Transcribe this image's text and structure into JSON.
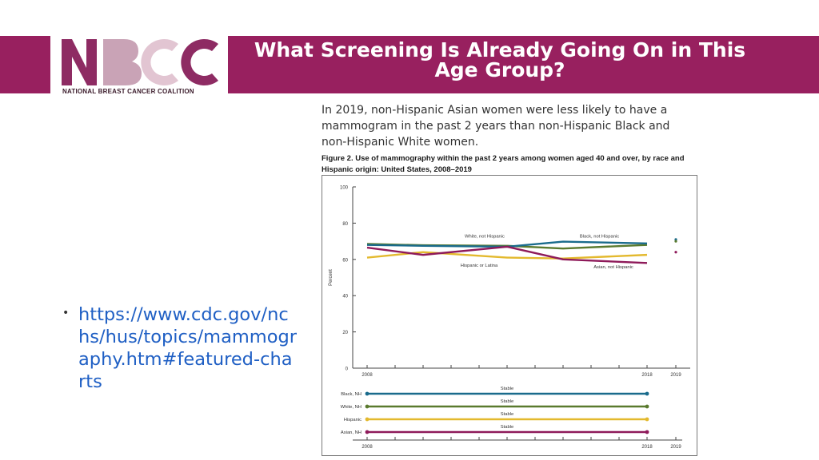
{
  "header": {
    "title": "What Screening Is Already Going On in This Age Group?",
    "background_color": "#98205f",
    "logo_text": "NBCC",
    "logo_subtitle": "NATIONAL BREAST CANCER COALITION"
  },
  "bullets": [
    {
      "text": "https://www.cdc.gov/nchs/hus/topics/mammography.htm#featured-charts"
    }
  ],
  "figure": {
    "intro": "In 2019, non-Hispanic Asian women were less likely to have a mammogram in the past 2 years than non-Hispanic Black and non-Hispanic White women.",
    "caption": "Figure 2. Use of mammography within the past 2 years among women aged 40 and over, by race and Hispanic origin: United States, 2008–2019"
  },
  "chart_data": [
    {
      "type": "line",
      "ylabel": "Percent",
      "ylim": [
        0,
        100
      ],
      "yticks": [
        0,
        20,
        40,
        60,
        80,
        100
      ],
      "xticks": [
        "2008",
        "2018",
        "2019"
      ],
      "x": [
        2008,
        2010,
        2013,
        2015,
        2018
      ],
      "series": [
        {
          "name": "White, not Hispanic",
          "color": "#5a7a2e",
          "values": [
            68.5,
            67.8,
            67.5,
            66.0,
            68.0
          ]
        },
        {
          "name": "Black, not Hispanic",
          "color": "#1a6b8c",
          "values": [
            68.0,
            67.5,
            67.0,
            69.8,
            68.8
          ]
        },
        {
          "name": "Hispanic or Latina",
          "color": "#e3b92e",
          "values": [
            61.0,
            64.0,
            61.0,
            60.5,
            62.5
          ]
        },
        {
          "name": "Asian, not Hispanic",
          "color": "#8e1a5a",
          "values": [
            66.5,
            62.5,
            67.0,
            60.0,
            58.0
          ]
        }
      ],
      "points_2019": [
        {
          "series": "Black, not Hispanic",
          "value": 71.0,
          "color": "#1a6b8c"
        },
        {
          "series": "White, not Hispanic",
          "value": 70.0,
          "color": "#5a7a2e"
        },
        {
          "series": "Asian, not Hispanic",
          "value": 64.0,
          "color": "#8e1a5a"
        }
      ]
    },
    {
      "type": "line",
      "xticks": [
        "2008",
        "2018",
        "2019"
      ],
      "rows": [
        {
          "label": "Black, NH",
          "trend": "Stable",
          "color": "#1a6b8c"
        },
        {
          "label": "White, NH",
          "trend": "Stable",
          "color": "#5a7a2e"
        },
        {
          "label": "Hispanic",
          "trend": "Stable",
          "color": "#e3b92e"
        },
        {
          "label": "Asian, NH",
          "trend": "Stable",
          "color": "#8e1a5a"
        }
      ]
    }
  ]
}
